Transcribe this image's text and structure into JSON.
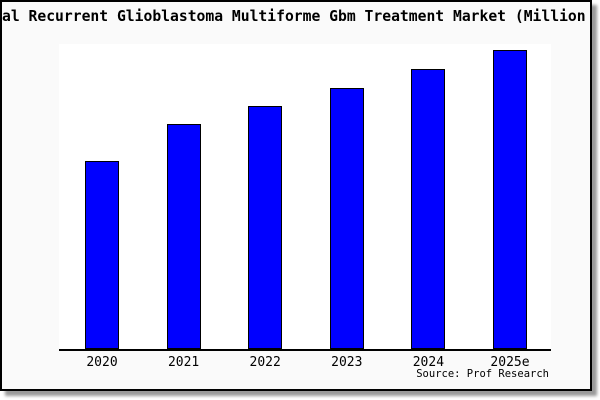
{
  "page": {
    "background": "#ffffff"
  },
  "frame": {
    "background": "#fafafa",
    "border_color": "#000000",
    "shadow_color": "#9a9a9a"
  },
  "chart_data": {
    "type": "bar",
    "title": "al Recurrent Glioblastoma Multiforme Gbm Treatment Market (Million",
    "source_label": "Source: Prof Research",
    "categories": [
      "2020",
      "2021",
      "2022",
      "2023",
      "2024",
      "2025e"
    ],
    "values": [
      62.9,
      75.3,
      81.3,
      87.3,
      93.6,
      100
    ],
    "value_scale": "relative bar height, % of tallest bar (no numeric value axis shown)",
    "ylim": [
      0,
      100
    ],
    "xlabel": "",
    "ylabel": "",
    "grid": false,
    "legend": false,
    "bar_color": "#0000ff",
    "bar_border_color": "#000000",
    "axis_color": "#000000"
  }
}
